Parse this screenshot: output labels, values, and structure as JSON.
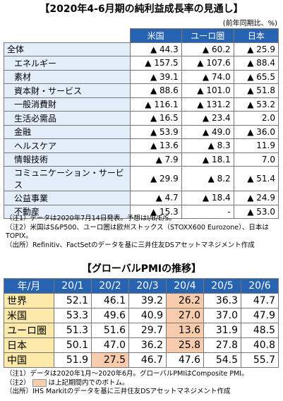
{
  "header": {
    "title": "【2020年4-6月期の純利益成長率の見通し】",
    "unit": "(前年同期比、%)"
  },
  "table1": {
    "columns": [
      "米国",
      "ユーロ圏",
      "日本"
    ],
    "rows": [
      {
        "label": "全体",
        "cells": [
          "▲ 44.3",
          "▲ 60.2",
          "▲ 25.9"
        ]
      },
      {
        "label": "エネルギー",
        "cells": [
          "▲ 157.5",
          "▲ 107.6",
          "▲ 88.4"
        ]
      },
      {
        "label": "素材",
        "cells": [
          "▲ 39.1",
          "▲ 74.0",
          "▲ 65.5"
        ]
      },
      {
        "label": "資本財・サービス",
        "cells": [
          "▲ 88.6",
          "▲ 101.0",
          "▲ 51.8"
        ]
      },
      {
        "label": "一般消費財",
        "cells": [
          "▲ 116.1",
          "▲ 131.2",
          "▲ 53.2"
        ]
      },
      {
        "label": "生活必需品",
        "cells": [
          "▲ 16.5",
          "▲ 23.4",
          "2.0"
        ]
      },
      {
        "label": "金融",
        "cells": [
          "▲ 53.9",
          "▲ 49.0",
          "▲ 36.0"
        ]
      },
      {
        "label": "ヘルスケア",
        "cells": [
          "▲ 13.6",
          "▲ 8.3",
          "11.9"
        ]
      },
      {
        "label": "情報技術",
        "cells": [
          "▲ 7.9",
          "▲ 18.1",
          "7.0"
        ]
      },
      {
        "label": "コミュニケーション・サービス",
        "cells": [
          "▲ 29.9",
          "▲ 8.2",
          "▲ 51.4"
        ]
      },
      {
        "label": "公益事業",
        "cells": [
          "▲ 4.7",
          "▲ 18.4",
          "▲ 24.9"
        ]
      },
      {
        "label": "不動産",
        "cells": [
          "▲ 15.3",
          "-",
          "▲ 53.0"
        ]
      }
    ]
  },
  "notes1": [
    "（注1）データは2020年7月14日発表。予想はI/B/E/S。",
    "（注2）米国はS&P500、ユーロ圏は欧州ストックス（STOXX600 Eurozone）、日本はTOPIX。",
    "（出所）Refinitiv、FactSetのデータを基に三井住友DSアセットマネジメント作成"
  ],
  "title2": "【グローバルPMIの推移】",
  "table2": {
    "corner": "年/月",
    "columns": [
      "20/1",
      "20/2",
      "20/3",
      "20/4",
      "20/5",
      "20/6"
    ],
    "rows": [
      {
        "label": "世界",
        "cells": [
          "52.1",
          "46.1",
          "39.2",
          "26.2",
          "36.3",
          "47.7"
        ]
      },
      {
        "label": "米国",
        "cells": [
          "53.3",
          "49.6",
          "40.9",
          "27.0",
          "37.0",
          "47.9"
        ]
      },
      {
        "label": "ユーロ圏",
        "cells": [
          "51.3",
          "51.6",
          "29.7",
          "13.6",
          "31.9",
          "48.5"
        ]
      },
      {
        "label": "日本",
        "cells": [
          "50.1",
          "47.0",
          "36.2",
          "25.8",
          "27.8",
          "40.8"
        ]
      },
      {
        "label": "中国",
        "cells": [
          "51.9",
          "27.5",
          "46.7",
          "47.6",
          "54.5",
          "55.7"
        ]
      }
    ]
  },
  "notes2": {
    "note1": "（注1）データは2020年1月～2020年6月。グローバルPMIはComposite PMI。",
    "note2_prefix": "（注2）",
    "note2_text": "は上記期間内でのボトム。",
    "source": "（出所）IHS Markitのデータを基に三井住友DSアセットマネジメント作成"
  }
}
